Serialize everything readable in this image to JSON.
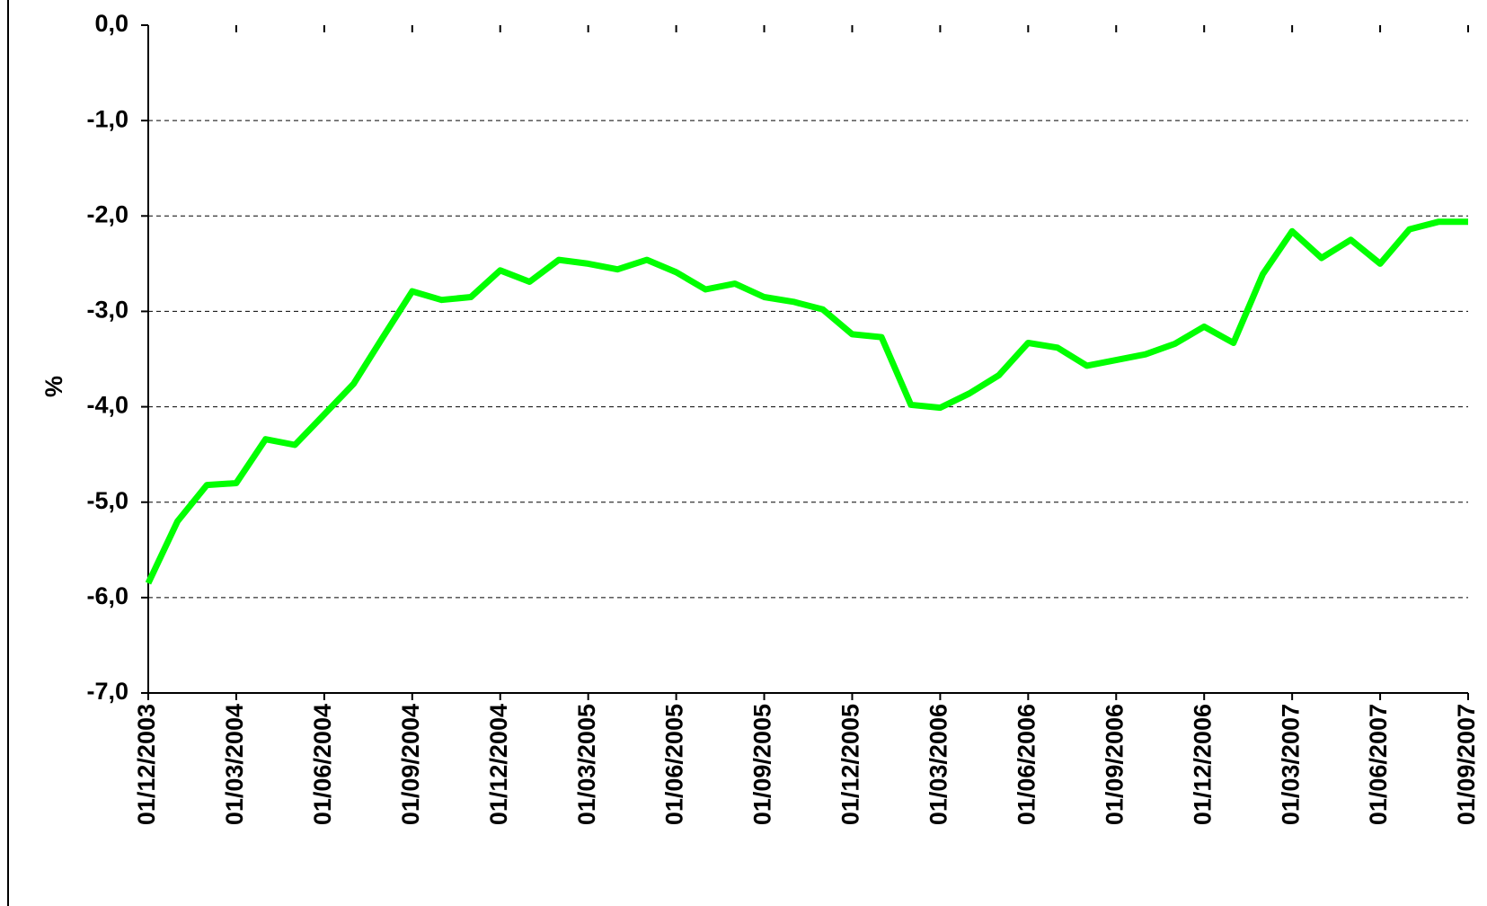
{
  "chart_data": {
    "type": "line",
    "y_label": "%",
    "categories": [
      "01/12/2003",
      null,
      null,
      "01/03/2004",
      null,
      null,
      "01/06/2004",
      null,
      null,
      "01/09/2004",
      null,
      null,
      "01/12/2004",
      null,
      null,
      "01/03/2005",
      null,
      null,
      "01/06/2005",
      null,
      null,
      "01/09/2005",
      null,
      null,
      "01/12/2005",
      null,
      null,
      "01/03/2006",
      null,
      null,
      "01/06/2006",
      null,
      null,
      "01/09/2006",
      null,
      null,
      "01/12/2006",
      null,
      null,
      "01/03/2007",
      null,
      null,
      "01/06/2007",
      null,
      null,
      "01/09/2007"
    ],
    "series": [
      {
        "color": "#00ff00",
        "values": [
          -5.85,
          -5.2,
          -4.82,
          -4.8,
          -4.34,
          -4.4,
          -4.08,
          -3.76,
          -3.27,
          -2.79,
          -2.88,
          -2.85,
          -2.57,
          -2.69,
          -2.46,
          -2.5,
          -2.56,
          -2.46,
          -2.59,
          -2.77,
          -2.71,
          -2.85,
          -2.9,
          -2.98,
          -3.24,
          -3.27,
          -3.98,
          -4.01,
          -3.86,
          -3.67,
          -3.33,
          -3.38,
          -3.57,
          -3.51,
          -3.45,
          -3.34,
          -3.16,
          -3.33,
          -2.61,
          -2.16,
          -2.44,
          -2.25,
          -2.5,
          -2.14,
          -2.06,
          -2.06
        ]
      }
    ],
    "ylim": [
      -7,
      0
    ],
    "yticks": [
      {
        "value": 0,
        "label": "0,0"
      },
      {
        "value": -1,
        "label": "-1,0"
      },
      {
        "value": -2,
        "label": "-2,0"
      },
      {
        "value": -3,
        "label": "-3,0"
      },
      {
        "value": -4,
        "label": "-4,0"
      },
      {
        "value": -5,
        "label": "-5,0"
      },
      {
        "value": -6,
        "label": "-6,0"
      },
      {
        "value": -7,
        "label": "-7,0"
      }
    ],
    "grid": true
  }
}
